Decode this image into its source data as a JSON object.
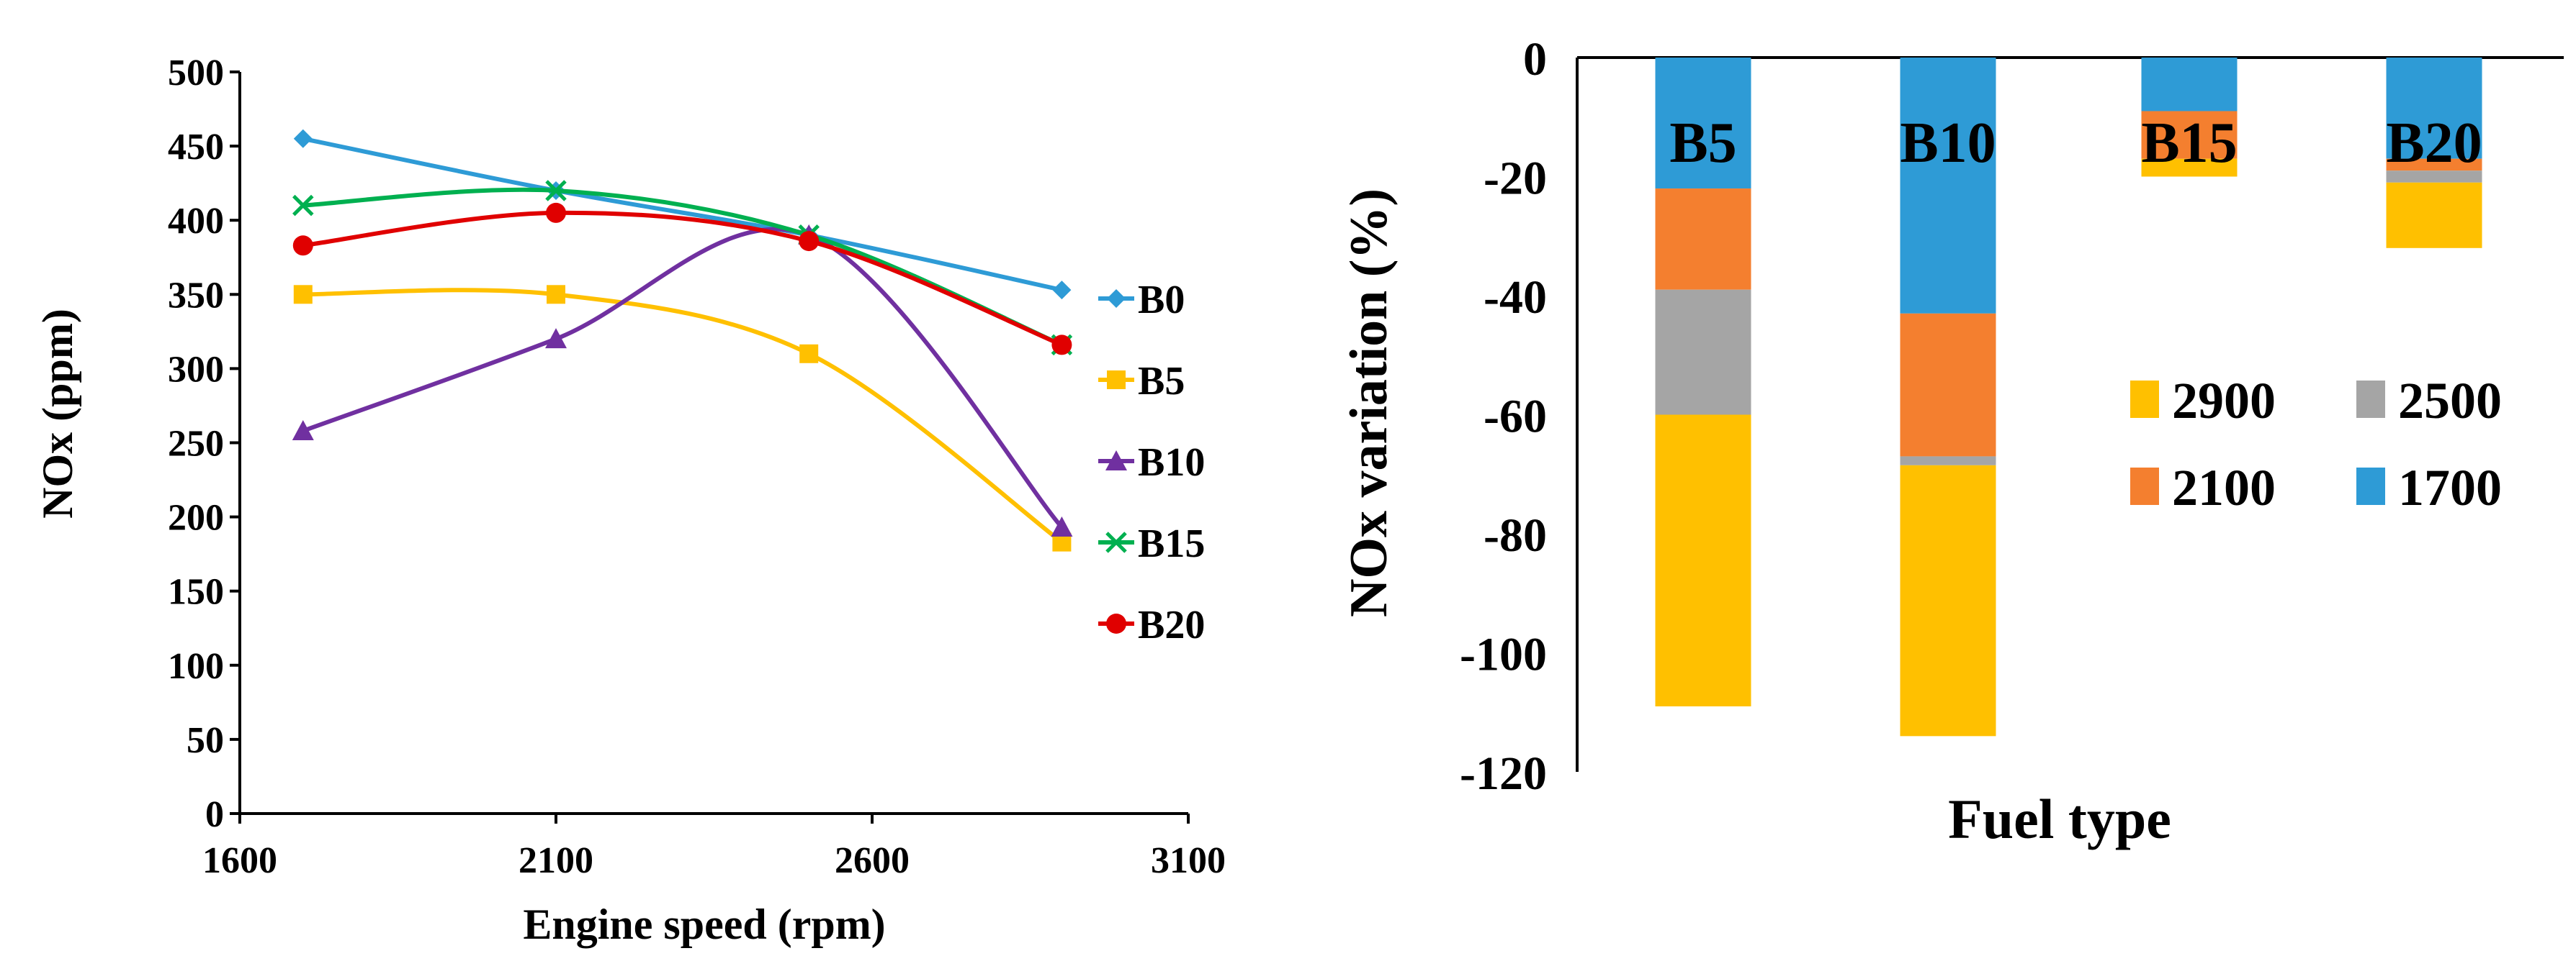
{
  "chart_data": [
    {
      "type": "line",
      "title": "",
      "xlabel": "Engine speed (rpm)",
      "ylabel": "NOx (ppm)",
      "xlim": [
        1600,
        3100
      ],
      "ylim": [
        0,
        500
      ],
      "x_ticks": [
        "1600",
        "2100",
        "2600",
        "3100"
      ],
      "y_ticks": [
        "0",
        "50",
        "100",
        "150",
        "200",
        "250",
        "300",
        "350",
        "400",
        "450",
        "500"
      ],
      "grid": false,
      "legend_position": "right",
      "x": [
        1700,
        2100,
        2500,
        2900
      ],
      "series": [
        {
          "name": "B0",
          "color": "#2e9bd6",
          "marker": "diamond",
          "values": [
            455,
            420,
            390,
            353
          ]
        },
        {
          "name": "B5",
          "color": "#ffc000",
          "marker": "square",
          "values": [
            350,
            350,
            310,
            183
          ]
        },
        {
          "name": "B10",
          "color": "#7030a0",
          "marker": "triangle",
          "values": [
            258,
            320,
            390,
            193
          ]
        },
        {
          "name": "B15",
          "color": "#00b050",
          "marker": "x",
          "values": [
            410,
            420,
            390,
            316
          ]
        },
        {
          "name": "B20",
          "color": "#e00000",
          "marker": "circle",
          "values": [
            383,
            405,
            386,
            316
          ]
        }
      ]
    },
    {
      "type": "bar",
      "stacked": true,
      "title": "",
      "xlabel": "Fuel type",
      "ylabel": "NOx variation (%)",
      "ylim": [
        -120,
        0
      ],
      "y_ticks": [
        "0",
        "-20",
        "-40",
        "-60",
        "-80",
        "-100",
        "-120"
      ],
      "grid": false,
      "legend_position": "right",
      "categories": [
        "B5",
        "B10",
        "B15",
        "B20"
      ],
      "series": [
        {
          "name": "1700",
          "color": "#2e9bd6",
          "values": [
            -22,
            -43,
            -9,
            -17
          ]
        },
        {
          "name": "2100",
          "color": "#f47f2f",
          "values": [
            -17,
            -24,
            -8,
            -2
          ]
        },
        {
          "name": "2500",
          "color": "#a5a5a5",
          "values": [
            -21,
            -1.5,
            0,
            -2
          ]
        },
        {
          "name": "2900",
          "color": "#ffc000",
          "values": [
            -49,
            -45.5,
            -3,
            -11
          ]
        }
      ],
      "legend_order": [
        "2900",
        "2500",
        "2100",
        "1700"
      ]
    }
  ]
}
